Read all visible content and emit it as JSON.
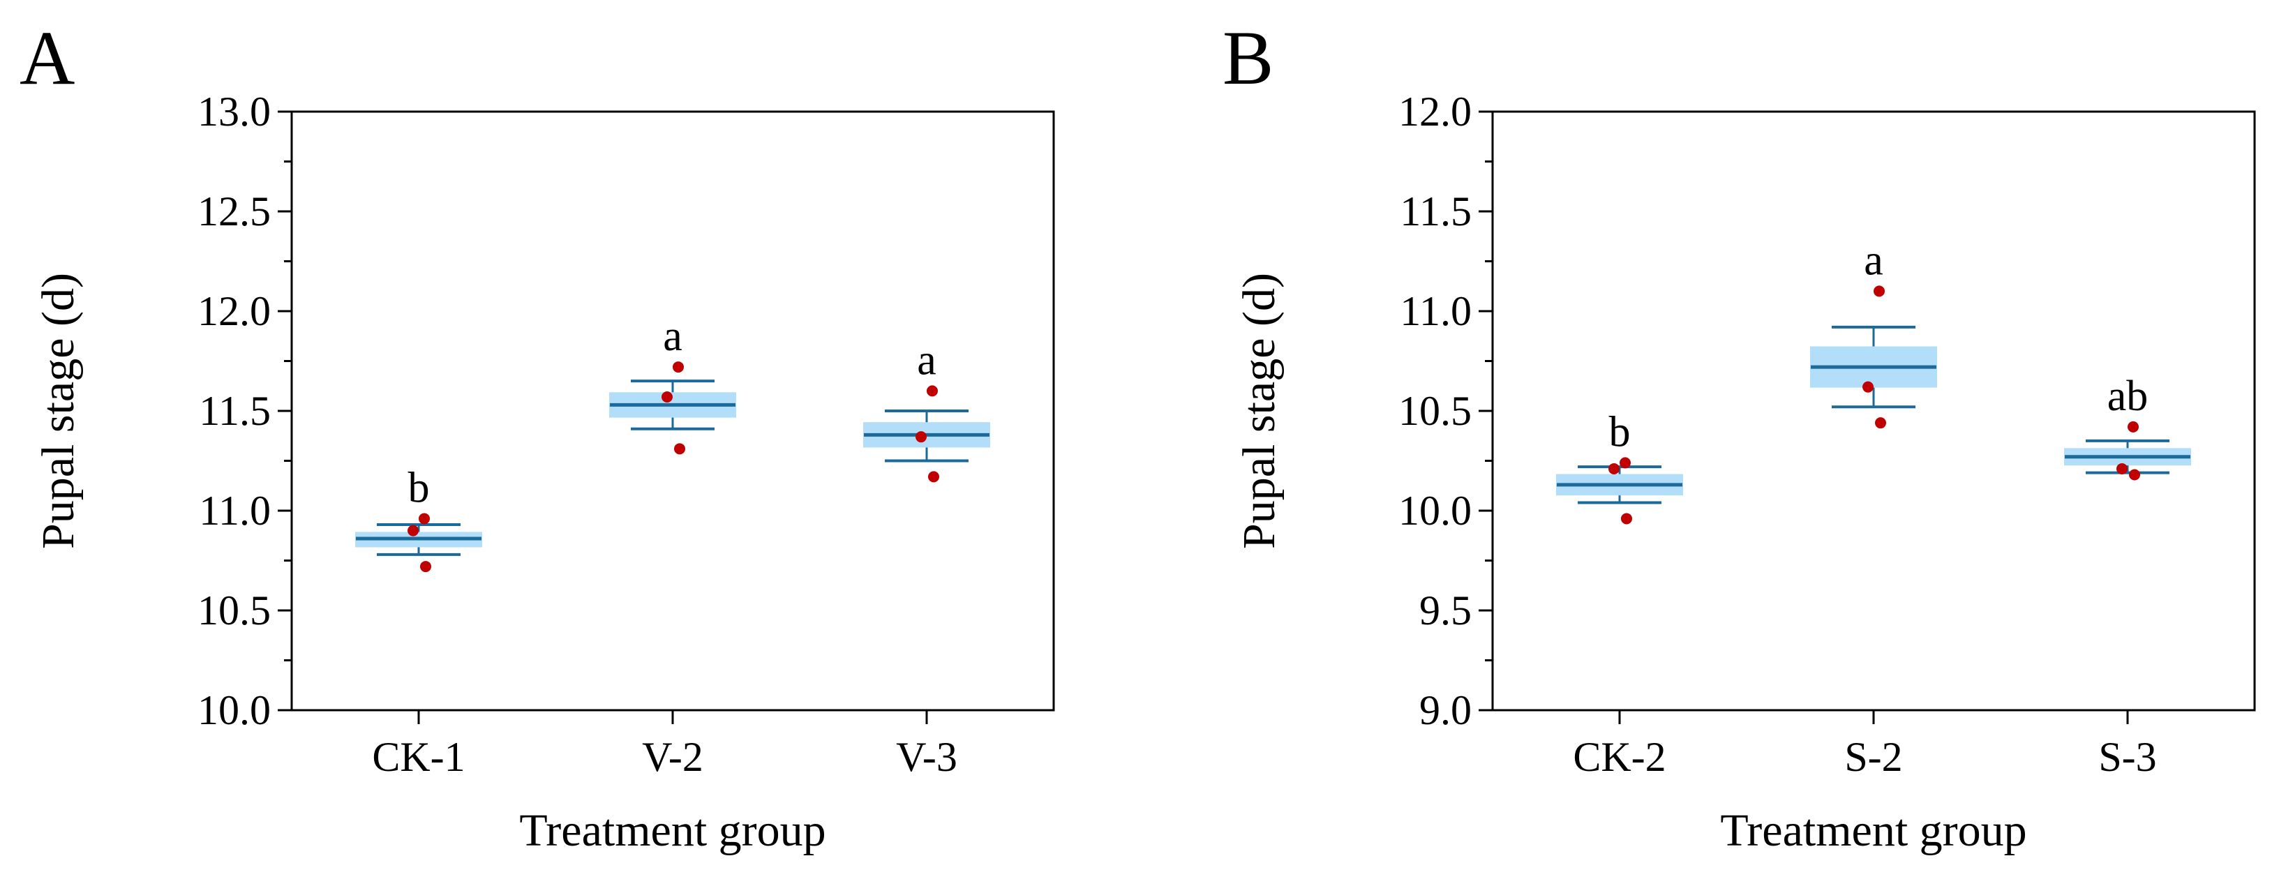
{
  "chart_data": [
    {
      "type": "box",
      "panel_label": "A",
      "ylabel": "Pupal stage (d)",
      "xlabel": "Treatment group",
      "ylim": [
        10.0,
        13.0
      ],
      "yticks": [
        "10.0",
        "10.5",
        "11.0",
        "11.5",
        "12.0",
        "12.5",
        "13.0"
      ],
      "categories": [
        "CK-1",
        "V-2",
        "V-3"
      ],
      "groups": [
        {
          "name": "CK-1",
          "median": 10.86,
          "q1": 10.82,
          "q3": 10.89,
          "whisker_low": 10.78,
          "whisker_high": 10.93,
          "points": [
            10.96,
            10.9,
            10.72
          ],
          "significance": "b"
        },
        {
          "name": "V-2",
          "median": 11.53,
          "q1": 11.47,
          "q3": 11.59,
          "whisker_low": 11.41,
          "whisker_high": 11.65,
          "points": [
            11.72,
            11.57,
            11.31
          ],
          "significance": "a"
        },
        {
          "name": "V-3",
          "median": 11.38,
          "q1": 11.32,
          "q3": 11.44,
          "whisker_low": 11.25,
          "whisker_high": 11.5,
          "points": [
            11.6,
            11.37,
            11.17
          ],
          "significance": "a"
        }
      ]
    },
    {
      "type": "box",
      "panel_label": "B",
      "ylabel": "Pupal stage (d)",
      "xlabel": "Treatment group",
      "ylim": [
        9.0,
        12.0
      ],
      "yticks": [
        "9.0",
        "9.5",
        "10.0",
        "10.5",
        "11.0",
        "11.5",
        "12.0"
      ],
      "categories": [
        "CK-2",
        "S-2",
        "S-3"
      ],
      "groups": [
        {
          "name": "CK-2",
          "median": 10.13,
          "q1": 10.08,
          "q3": 10.18,
          "whisker_low": 10.04,
          "whisker_high": 10.22,
          "points": [
            10.24,
            10.21,
            9.96
          ],
          "significance": "b"
        },
        {
          "name": "S-2",
          "median": 10.72,
          "q1": 10.62,
          "q3": 10.82,
          "whisker_low": 10.52,
          "whisker_high": 10.92,
          "points": [
            11.1,
            10.62,
            10.44
          ],
          "significance": "a"
        },
        {
          "name": "S-3",
          "median": 10.27,
          "q1": 10.23,
          "q3": 10.31,
          "whisker_low": 10.19,
          "whisker_high": 10.35,
          "points": [
            10.42,
            10.21,
            10.18
          ],
          "significance": "ab"
        }
      ]
    }
  ],
  "colors": {
    "box_fill": "#b3defa",
    "box_line": "#1b6a9a",
    "point": "#c00000",
    "axis": "#000000"
  }
}
